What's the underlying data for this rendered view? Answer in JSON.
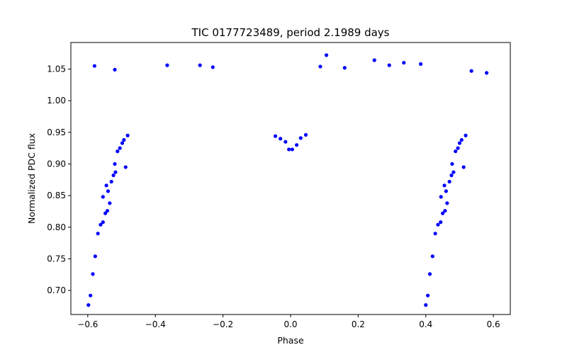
{
  "chart_data": {
    "type": "scatter",
    "title": "TIC 0177723489, period 2.1989 days",
    "xlabel": "Phase",
    "ylabel": "Normalized PDC flux",
    "xlim": [
      -0.65,
      0.65
    ],
    "ylim": [
      0.662,
      1.092
    ],
    "xticks": [
      -0.6,
      -0.4,
      -0.2,
      0.0,
      0.2,
      0.4,
      0.6
    ],
    "xtick_labels": [
      "−0.6",
      "−0.4",
      "−0.2",
      "0.0",
      "0.2",
      "0.4",
      "0.6"
    ],
    "yticks": [
      0.7,
      0.75,
      0.8,
      0.85,
      0.9,
      0.95,
      1.0,
      1.05
    ],
    "ytick_labels": [
      "0.70",
      "0.75",
      "0.80",
      "0.85",
      "0.90",
      "0.95",
      "1.00",
      "1.05"
    ],
    "grid": false,
    "marker_color": "#0000ff",
    "series": [
      {
        "name": "",
        "points": [
          [
            -0.598,
            0.677
          ],
          [
            -0.592,
            0.692
          ],
          [
            -0.585,
            0.726
          ],
          [
            -0.578,
            0.754
          ],
          [
            -0.57,
            0.79
          ],
          [
            -0.562,
            0.804
          ],
          [
            -0.555,
            0.808
          ],
          [
            -0.548,
            0.822
          ],
          [
            -0.542,
            0.826
          ],
          [
            -0.535,
            0.838
          ],
          [
            -0.545,
            0.866
          ],
          [
            -0.53,
            0.872
          ],
          [
            -0.524,
            0.882
          ],
          [
            -0.518,
            0.887
          ],
          [
            -0.512,
            0.92
          ],
          [
            -0.505,
            0.925
          ],
          [
            -0.498,
            0.933
          ],
          [
            -0.493,
            0.938
          ],
          [
            -0.488,
            0.895
          ],
          [
            -0.482,
            0.945
          ],
          [
            -0.54,
            0.857
          ],
          [
            -0.555,
            0.848
          ],
          [
            -0.52,
            0.9
          ],
          [
            0.4,
            0.677
          ],
          [
            0.406,
            0.692
          ],
          [
            0.412,
            0.726
          ],
          [
            0.42,
            0.754
          ],
          [
            0.428,
            0.79
          ],
          [
            0.436,
            0.804
          ],
          [
            0.444,
            0.808
          ],
          [
            0.45,
            0.822
          ],
          [
            0.457,
            0.826
          ],
          [
            0.463,
            0.838
          ],
          [
            0.455,
            0.866
          ],
          [
            0.47,
            0.872
          ],
          [
            0.476,
            0.882
          ],
          [
            0.482,
            0.887
          ],
          [
            0.488,
            0.92
          ],
          [
            0.495,
            0.925
          ],
          [
            0.5,
            0.933
          ],
          [
            0.506,
            0.938
          ],
          [
            0.512,
            0.895
          ],
          [
            0.518,
            0.945
          ],
          [
            0.46,
            0.857
          ],
          [
            0.445,
            0.848
          ],
          [
            0.478,
            0.9
          ],
          [
            -0.005,
            0.923
          ],
          [
            0.005,
            0.923
          ],
          [
            0.018,
            0.93
          ],
          [
            -0.015,
            0.935
          ],
          [
            -0.03,
            0.94
          ],
          [
            0.03,
            0.941
          ],
          [
            -0.045,
            0.944
          ],
          [
            0.045,
            0.946
          ],
          [
            0.106,
            1.072
          ],
          [
            0.248,
            1.064
          ],
          [
            0.335,
            1.06
          ],
          [
            0.385,
            1.058
          ],
          [
            -0.58,
            1.055
          ],
          [
            -0.268,
            1.056
          ],
          [
            -0.365,
            1.056
          ],
          [
            0.088,
            1.054
          ],
          [
            0.16,
            1.052
          ],
          [
            0.292,
            1.056
          ],
          [
            0.535,
            1.047
          ],
          [
            0.58,
            1.044
          ],
          [
            -0.52,
            1.049
          ],
          [
            -0.23,
            1.053
          ]
        ]
      }
    ]
  }
}
